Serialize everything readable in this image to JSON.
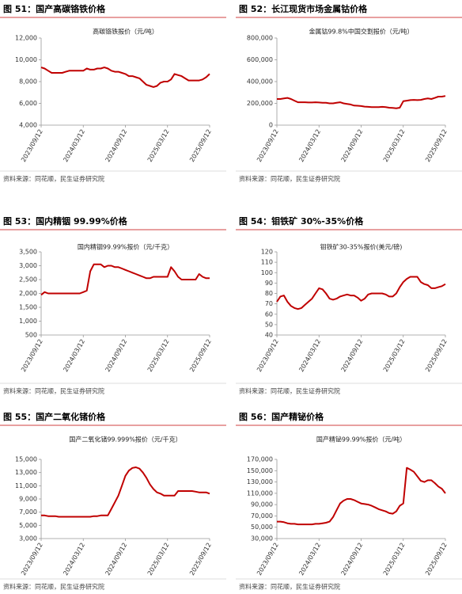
{
  "chart_data": [
    {
      "type": "line",
      "figure_title": "图 51：国产高碳铬铁价格",
      "title": "高碳铬铁报价（元/吨）",
      "source": "资料来源：同花顺，民生证券研究院",
      "color": "#c00000",
      "categories": [
        "2023/09/12",
        null,
        null,
        null,
        null,
        null,
        null,
        null,
        null,
        null,
        null,
        null,
        "2024/03/12",
        null,
        null,
        null,
        null,
        null,
        null,
        null,
        null,
        null,
        null,
        null,
        "2024/09/12",
        null,
        null,
        null,
        null,
        null,
        null,
        null,
        null,
        null,
        null,
        null,
        "2025/03/12",
        null,
        null,
        null,
        null,
        null,
        null,
        null,
        null,
        null,
        null,
        null,
        "2025/09/12"
      ],
      "values": [
        9300,
        9200,
        9000,
        8800,
        8800,
        8800,
        8800,
        8900,
        9000,
        9000,
        9000,
        9000,
        9000,
        9200,
        9100,
        9100,
        9200,
        9200,
        9300,
        9200,
        9000,
        8900,
        8900,
        8800,
        8700,
        8500,
        8500,
        8400,
        8300,
        8000,
        7700,
        7600,
        7500,
        7600,
        7900,
        8000,
        8000,
        8200,
        8700,
        8600,
        8500,
        8300,
        8100,
        8100,
        8100,
        8100,
        8200,
        8400,
        8700
      ],
      "ylim": [
        4000,
        12000
      ],
      "yticks": [
        {
          "value": 4000,
          "label": "4,000"
        },
        {
          "value": 6000,
          "label": "6,000"
        },
        {
          "value": 8000,
          "label": "8,000"
        },
        {
          "value": 10000,
          "label": "10,000"
        },
        {
          "value": 12000,
          "label": "12,000"
        }
      ]
    },
    {
      "type": "line",
      "figure_title": "图 52：长江现货市场金属钴价格",
      "title": "金属钴99.8%中国交割报价（元/吨）",
      "source": "资料来源：同花顺，民生证券研究院",
      "color": "#c00000",
      "categories": [
        "2023/09/12",
        null,
        null,
        null,
        null,
        null,
        null,
        null,
        null,
        null,
        null,
        null,
        "2024/03/12",
        null,
        null,
        null,
        null,
        null,
        null,
        null,
        null,
        null,
        null,
        null,
        "2024/09/12",
        null,
        null,
        null,
        null,
        null,
        null,
        null,
        null,
        null,
        null,
        null,
        "2025/03/12",
        null,
        null,
        null,
        null,
        null,
        null,
        null,
        null,
        null,
        null,
        null,
        "2025/09/12"
      ],
      "values": [
        240000,
        240000,
        245000,
        250000,
        240000,
        225000,
        210000,
        210000,
        210000,
        208000,
        208000,
        210000,
        208000,
        205000,
        205000,
        200000,
        200000,
        205000,
        210000,
        200000,
        195000,
        190000,
        180000,
        178000,
        175000,
        170000,
        168000,
        165000,
        165000,
        165000,
        168000,
        165000,
        160000,
        158000,
        155000,
        160000,
        220000,
        225000,
        230000,
        232000,
        230000,
        232000,
        240000,
        245000,
        240000,
        250000,
        262000,
        262000,
        268000
      ],
      "ylim": [
        0,
        800000
      ],
      "yticks": [
        0,
        {
          "value": 200000,
          "label": "200,000"
        },
        {
          "value": 400000,
          "label": "400,000"
        },
        {
          "value": 600000,
          "label": "600,000"
        },
        {
          "value": 800000,
          "label": "800,000"
        }
      ]
    },
    {
      "type": "line",
      "figure_title": "图 53：国内精铟 99.99%价格",
      "title": "国内精铟99.99%报价（元/千克）",
      "source": "资料来源：同花顺，民生证券研究院",
      "color": "#c00000",
      "categories": [
        "2023/09/12",
        null,
        null,
        null,
        null,
        null,
        null,
        null,
        null,
        null,
        null,
        null,
        "2024/03/12",
        null,
        null,
        null,
        null,
        null,
        null,
        null,
        null,
        null,
        null,
        null,
        "2024/09/12",
        null,
        null,
        null,
        null,
        null,
        null,
        null,
        null,
        null,
        null,
        null,
        "2025/03/12",
        null,
        null,
        null,
        null,
        null,
        null,
        null,
        null,
        null,
        null,
        null,
        "2025/09/12"
      ],
      "values": [
        1950,
        2050,
        2000,
        2000,
        2000,
        2000,
        2000,
        2000,
        2000,
        2000,
        2000,
        2000,
        2050,
        2100,
        2800,
        3050,
        3050,
        3050,
        2950,
        3000,
        3000,
        2950,
        2950,
        2900,
        2850,
        2800,
        2750,
        2700,
        2650,
        2600,
        2550,
        2550,
        2600,
        2600,
        2600,
        2600,
        2600,
        2950,
        2800,
        2600,
        2500,
        2500,
        2500,
        2500,
        2500,
        2700,
        2600,
        2550,
        2550
      ],
      "ylim": [
        500,
        3500
      ],
      "yticks": [
        500,
        {
          "value": 1000,
          "label": "1,000"
        },
        {
          "value": 1500,
          "label": "1,500"
        },
        {
          "value": 2000,
          "label": "2,000"
        },
        {
          "value": 2500,
          "label": "2,500"
        },
        {
          "value": 3000,
          "label": "3,000"
        },
        {
          "value": 3500,
          "label": "3,500"
        }
      ]
    },
    {
      "type": "line",
      "figure_title": "图 54：钼铁矿 30%-35%价格",
      "title": "钼铁矿30-35%报价(美元/磅)",
      "source": "资料来源：同花顺，民生证券研究院",
      "color": "#c00000",
      "categories": [
        "2023/09/12",
        null,
        null,
        null,
        null,
        null,
        null,
        null,
        null,
        null,
        null,
        null,
        "2024/03/12",
        null,
        null,
        null,
        null,
        null,
        null,
        null,
        null,
        null,
        null,
        null,
        "2024/09/12",
        null,
        null,
        null,
        null,
        null,
        null,
        null,
        null,
        null,
        null,
        null,
        "2025/03/12",
        null,
        null,
        null,
        null,
        null,
        null,
        null,
        null,
        null,
        null,
        null,
        "2025/09/12"
      ],
      "values": [
        72,
        77,
        78,
        72,
        68,
        66,
        65,
        66,
        69,
        72,
        75,
        80,
        85,
        84,
        80,
        75,
        74,
        75,
        77,
        78,
        79,
        78,
        78,
        76,
        73,
        75,
        79,
        80,
        80,
        80,
        80,
        79,
        77,
        77,
        80,
        86,
        91,
        94,
        96,
        96,
        96,
        91,
        89,
        88,
        85,
        85,
        86,
        87,
        89
      ],
      "ylim": [
        40,
        120
      ],
      "yticks": [
        40,
        50,
        60,
        70,
        80,
        90,
        100,
        110,
        120
      ]
    },
    {
      "type": "line",
      "figure_title": "图 55：国产二氧化锗价格",
      "title": "国产二氧化锗99.999%报价（元/千克）",
      "source": "资料来源：同花顺，民生证券研究院",
      "color": "#c00000",
      "categories": [
        "2023/09/12",
        null,
        null,
        null,
        null,
        null,
        null,
        null,
        null,
        null,
        null,
        null,
        "2024/03/12",
        null,
        null,
        null,
        null,
        null,
        null,
        null,
        null,
        null,
        null,
        null,
        "2024/09/12",
        null,
        null,
        null,
        null,
        null,
        null,
        null,
        null,
        null,
        null,
        null,
        "2025/03/12",
        null,
        null,
        null,
        null,
        null,
        null,
        null,
        null,
        null,
        null,
        null,
        "2025/09/12"
      ],
      "values": [
        6500,
        6500,
        6400,
        6400,
        6400,
        6300,
        6300,
        6300,
        6300,
        6300,
        6300,
        6300,
        6300,
        6300,
        6300,
        6400,
        6400,
        6500,
        6500,
        6500,
        7500,
        8500,
        9500,
        11000,
        12500,
        13300,
        13700,
        13800,
        13600,
        13000,
        12200,
        11200,
        10500,
        10000,
        9800,
        9500,
        9500,
        9500,
        9500,
        10200,
        10200,
        10200,
        10200,
        10200,
        10100,
        10000,
        10000,
        10000,
        9800
      ],
      "ylim": [
        3000,
        15000
      ],
      "yticks": [
        {
          "value": 3000,
          "label": "3,000"
        },
        {
          "value": 5000,
          "label": "5,000"
        },
        {
          "value": 7000,
          "label": "7,000"
        },
        {
          "value": 9000,
          "label": "9,000"
        },
        {
          "value": 11000,
          "label": "11,000"
        },
        {
          "value": 13000,
          "label": "13,000"
        },
        {
          "value": 15000,
          "label": "15,000"
        }
      ]
    },
    {
      "type": "line",
      "figure_title": "图 56：国产精铋价格",
      "title": "国产精铋99.99%报价（元/吨）",
      "source": "资料来源：同花顺，民生证券研究院",
      "color": "#c00000",
      "categories": [
        "2023/09/12",
        null,
        null,
        null,
        null,
        null,
        null,
        null,
        null,
        null,
        null,
        null,
        "2024/03/12",
        null,
        null,
        null,
        null,
        null,
        null,
        null,
        null,
        null,
        null,
        null,
        "2024/09/12",
        null,
        null,
        null,
        null,
        null,
        null,
        null,
        null,
        null,
        null,
        null,
        "2025/03/12",
        null,
        null,
        null,
        null,
        null,
        null,
        null,
        null,
        null,
        null,
        null,
        "2025/09/12"
      ],
      "values": [
        60000,
        60000,
        59000,
        57000,
        56000,
        56000,
        55000,
        55000,
        55000,
        55000,
        55000,
        56000,
        56000,
        57000,
        58000,
        60000,
        68000,
        80000,
        92000,
        97000,
        100000,
        100000,
        98000,
        95000,
        92000,
        91000,
        90000,
        88000,
        85000,
        82000,
        80000,
        78000,
        75000,
        74000,
        78000,
        88000,
        92000,
        155000,
        152000,
        148000,
        140000,
        132000,
        130000,
        133000,
        133000,
        128000,
        122000,
        118000,
        110000
      ],
      "ylim": [
        30000,
        170000
      ],
      "yticks": [
        {
          "value": 30000,
          "label": "30,000"
        },
        {
          "value": 50000,
          "label": "50,000"
        },
        {
          "value": 70000,
          "label": "70,000"
        },
        {
          "value": 90000,
          "label": "90,000"
        },
        {
          "value": 110000,
          "label": "110,000"
        },
        {
          "value": 130000,
          "label": "130,000"
        },
        {
          "value": 150000,
          "label": "150,000"
        },
        {
          "value": 170000,
          "label": "170,000"
        }
      ]
    }
  ]
}
